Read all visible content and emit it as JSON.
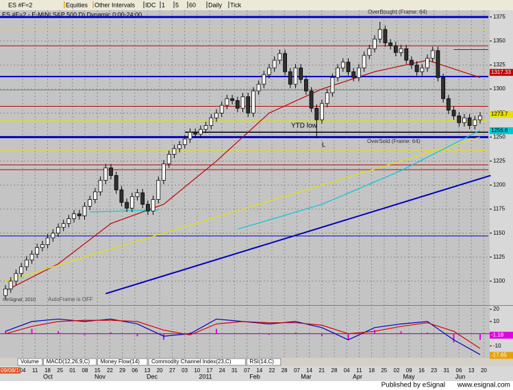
{
  "toolbar": {
    "symbol": "ES #F=2",
    "items": [
      "Equities",
      "Other Intervals",
      "IDC",
      "1",
      "5",
      "60",
      "Daily",
      "Tick"
    ]
  },
  "chart_data": [
    {
      "type": "candlestick",
      "title": "ES #F=2 - E-MINI S&P 500 D) Dynamic 0:00-24:00",
      "ylim": [
        1075,
        1382
      ],
      "yticks": [
        1100,
        1125,
        1150,
        1175,
        1200,
        1225,
        1250,
        1275,
        1300,
        1325,
        1350,
        1375
      ],
      "candles": [
        [
          1085,
          1096,
          1081,
          1092
        ],
        [
          1092,
          1104,
          1088,
          1100
        ],
        [
          1100,
          1112,
          1096,
          1108
        ],
        [
          1108,
          1119,
          1104,
          1115
        ],
        [
          1115,
          1126,
          1111,
          1122
        ],
        [
          1122,
          1132,
          1118,
          1128
        ],
        [
          1128,
          1139,
          1124,
          1135
        ],
        [
          1135,
          1142,
          1131,
          1138
        ],
        [
          1138,
          1149,
          1134,
          1145
        ],
        [
          1145,
          1154,
          1141,
          1150
        ],
        [
          1150,
          1160,
          1146,
          1156
        ],
        [
          1156,
          1164,
          1152,
          1160
        ],
        [
          1160,
          1169,
          1156,
          1165
        ],
        [
          1165,
          1174,
          1161,
          1170
        ],
        [
          1170,
          1174,
          1164,
          1168
        ],
        [
          1168,
          1182,
          1164,
          1178
        ],
        [
          1178,
          1189,
          1174,
          1185
        ],
        [
          1185,
          1197,
          1181,
          1193
        ],
        [
          1193,
          1209,
          1189,
          1205
        ],
        [
          1205,
          1222,
          1201,
          1218
        ],
        [
          1218,
          1222,
          1206,
          1210
        ],
        [
          1210,
          1214,
          1191,
          1195
        ],
        [
          1195,
          1199,
          1178,
          1182
        ],
        [
          1182,
          1186,
          1172,
          1176
        ],
        [
          1176,
          1192,
          1172,
          1188
        ],
        [
          1188,
          1196,
          1184,
          1192
        ],
        [
          1192,
          1196,
          1176,
          1180
        ],
        [
          1180,
          1184,
          1169,
          1173
        ],
        [
          1173,
          1189,
          1169,
          1185
        ],
        [
          1185,
          1209,
          1181,
          1205
        ],
        [
          1205,
          1226,
          1201,
          1222
        ],
        [
          1222,
          1236,
          1218,
          1232
        ],
        [
          1232,
          1242,
          1228,
          1238
        ],
        [
          1238,
          1246,
          1234,
          1242
        ],
        [
          1242,
          1252,
          1238,
          1248
        ],
        [
          1248,
          1259,
          1244,
          1255
        ],
        [
          1255,
          1259,
          1249,
          1253
        ],
        [
          1253,
          1262,
          1249,
          1258
        ],
        [
          1258,
          1266,
          1254,
          1262
        ],
        [
          1262,
          1274,
          1258,
          1270
        ],
        [
          1270,
          1279,
          1266,
          1275
        ],
        [
          1275,
          1287,
          1271,
          1283
        ],
        [
          1283,
          1294,
          1279,
          1290
        ],
        [
          1290,
          1294,
          1284,
          1288
        ],
        [
          1288,
          1292,
          1276,
          1280
        ],
        [
          1280,
          1296,
          1276,
          1292
        ],
        [
          1292,
          1296,
          1271,
          1275
        ],
        [
          1275,
          1302,
          1271,
          1298
        ],
        [
          1298,
          1309,
          1294,
          1305
        ],
        [
          1305,
          1319,
          1301,
          1315
        ],
        [
          1315,
          1326,
          1311,
          1322
        ],
        [
          1322,
          1334,
          1318,
          1330
        ],
        [
          1330,
          1341,
          1326,
          1337
        ],
        [
          1337,
          1341,
          1314,
          1318
        ],
        [
          1318,
          1322,
          1301,
          1305
        ],
        [
          1305,
          1326,
          1301,
          1322
        ],
        [
          1322,
          1326,
          1306,
          1310
        ],
        [
          1310,
          1314,
          1294,
          1298
        ],
        [
          1298,
          1302,
          1276,
          1280
        ],
        [
          1280,
          1284,
          1249,
          1268
        ],
        [
          1268,
          1289,
          1264,
          1285
        ],
        [
          1285,
          1300,
          1281,
          1296
        ],
        [
          1296,
          1316,
          1292,
          1312
        ],
        [
          1312,
          1326,
          1308,
          1322
        ],
        [
          1322,
          1332,
          1318,
          1328
        ],
        [
          1328,
          1332,
          1314,
          1318
        ],
        [
          1318,
          1322,
          1308,
          1312
        ],
        [
          1312,
          1326,
          1308,
          1322
        ],
        [
          1322,
          1339,
          1318,
          1335
        ],
        [
          1335,
          1346,
          1331,
          1342
        ],
        [
          1342,
          1356,
          1338,
          1352
        ],
        [
          1352,
          1370,
          1348,
          1362
        ],
        [
          1362,
          1366,
          1344,
          1348
        ],
        [
          1348,
          1352,
          1341,
          1345
        ],
        [
          1345,
          1349,
          1334,
          1338
        ],
        [
          1338,
          1346,
          1334,
          1342
        ],
        [
          1342,
          1346,
          1326,
          1330
        ],
        [
          1330,
          1334,
          1321,
          1325
        ],
        [
          1325,
          1329,
          1314,
          1318
        ],
        [
          1318,
          1326,
          1314,
          1322
        ],
        [
          1322,
          1336,
          1318,
          1332
        ],
        [
          1332,
          1344,
          1328,
          1340
        ],
        [
          1340,
          1344,
          1308,
          1312
        ],
        [
          1312,
          1316,
          1286,
          1290
        ],
        [
          1290,
          1294,
          1274,
          1278
        ],
        [
          1278,
          1282,
          1268,
          1272
        ],
        [
          1272,
          1276,
          1261,
          1265
        ],
        [
          1265,
          1274,
          1261,
          1270
        ],
        [
          1270,
          1274,
          1258,
          1262
        ],
        [
          1262,
          1272,
          1258,
          1268
        ],
        [
          1268,
          1276,
          1264,
          1272
        ]
      ],
      "levels": [
        {
          "value": 1375,
          "color": "#0000c8",
          "width": 3
        },
        {
          "value": 1362,
          "color": "#e8e000",
          "width": 1
        },
        {
          "value": 1345,
          "color": "#c00000",
          "width": 1
        },
        {
          "value": 1313,
          "color": "#0000c8",
          "width": 2
        },
        {
          "value": 1299,
          "color": "#6a8a6a",
          "width": 1
        },
        {
          "value": 1282,
          "color": "#c00000",
          "width": 1
        },
        {
          "value": 1267,
          "color": "#e8e000",
          "width": 1
        },
        {
          "value": 1250,
          "color": "#0000c8",
          "width": 3
        },
        {
          "value": 1236,
          "color": "#e8e000",
          "width": 1
        },
        {
          "value": 1221,
          "color": "#c00000",
          "width": 1
        },
        {
          "value": 1216,
          "color": "#c00000",
          "width": 1
        },
        {
          "value": 1147,
          "color": "#0000c8",
          "width": 1
        },
        {
          "value": 1255,
          "color": "#000000",
          "width": 1.5,
          "from": 34
        },
        {
          "value": 1341,
          "color": "#006000",
          "width": 1,
          "from": 85
        }
      ],
      "overlays": [
        {
          "color": "#c00000",
          "points": [
            [
              0,
              1090
            ],
            [
              10,
              1118
            ],
            [
              20,
              1160
            ],
            [
              30,
              1180
            ],
            [
              40,
              1225
            ],
            [
              50,
              1275
            ],
            [
              60,
              1300
            ],
            [
              70,
              1318
            ],
            [
              80,
              1330
            ],
            [
              90,
              1312
            ]
          ]
        },
        {
          "color": "#e8e000",
          "points": [
            [
              0,
              1100
            ],
            [
              90,
              1250
            ]
          ]
        },
        {
          "color": "#0000c0",
          "points": [
            [
              19,
              1087
            ],
            [
              92,
              1210
            ]
          ]
        },
        {
          "color": "#00c8d8",
          "points": [
            [
              16,
              1172
            ],
            [
              29,
              1174
            ]
          ]
        },
        {
          "color": "#00c8d8",
          "points": [
            [
              44,
              1154
            ],
            [
              60,
              1180
            ],
            [
              75,
              1215
            ],
            [
              90,
              1257
            ]
          ]
        }
      ],
      "price_labels": [
        {
          "value": 1317.33,
          "label": "1317.33",
          "color": "#c00000"
        },
        {
          "value": 1273.7,
          "label": "1273.7",
          "color": "#e8e000"
        },
        {
          "value": 1256.6,
          "label": "1256.6",
          "color": "#00c8d8"
        }
      ],
      "annotations": [
        "OverBought (Frame: 64)",
        "OverSold (Frame: 64)",
        "YTD low",
        "L",
        "AutoFrame is OFF",
        "©eSignal, 2010"
      ]
    },
    {
      "type": "macd",
      "ylim": [
        -19.7,
        22.8
      ],
      "yticks": [
        -10,
        10,
        20
      ],
      "x": [
        0,
        5,
        10,
        15,
        20,
        25,
        30,
        35,
        40,
        45,
        50,
        55,
        60,
        65,
        70,
        75,
        80,
        85,
        90
      ],
      "series": [
        {
          "color": "#0000c0",
          "values": [
            2,
            10,
            12,
            10,
            12,
            8,
            -2,
            0,
            12,
            10,
            8,
            10,
            5,
            -5,
            5,
            8,
            10,
            -5,
            -17
          ]
        },
        {
          "color": "#e00000",
          "values": [
            0,
            6,
            10,
            11,
            11,
            10,
            3,
            -1,
            8,
            10,
            9,
            9,
            7,
            0,
            2,
            6,
            9,
            2,
            -12
          ]
        }
      ],
      "histogram": {
        "color": "#e000e0",
        "values": [
          2,
          4,
          2,
          -1,
          1,
          -2,
          -5,
          1,
          4,
          0,
          -1,
          1,
          -2,
          -5,
          3,
          2,
          1,
          -7,
          -5
        ]
      },
      "price_labels": [
        {
          "value": -1.18,
          "label": "-1.18",
          "color": "#e000e0"
        },
        {
          "value": -17.65,
          "label": "-17.65",
          "color": "#e8a000"
        }
      ]
    }
  ],
  "tabs": [
    "Volume",
    "MACD(12,26,9,C)",
    "Money Flow(14)",
    "Commodity Channel Index(23,C)",
    "RSI(14,C)"
  ],
  "date_axis": {
    "start": "09/08/10",
    "days": [
      "04",
      "11",
      "18",
      "25",
      "01",
      "08",
      "15",
      "22",
      "29",
      "06",
      "13",
      "20",
      "27",
      "03",
      "10",
      "17",
      "24",
      "31",
      "07",
      "14",
      "22",
      "28",
      "07",
      "14",
      "21",
      "28",
      "04",
      "11",
      "18",
      "25",
      "02",
      "09",
      "16",
      "23",
      "31",
      "06",
      "13",
      "20"
    ],
    "months": [
      "Oct",
      "Nov",
      "Dec",
      "2011",
      "Feb",
      "Mar",
      "Apr",
      "May",
      "Jun"
    ]
  },
  "footer": {
    "published": "Published by eSignal",
    "url": "www.esignal.com"
  }
}
